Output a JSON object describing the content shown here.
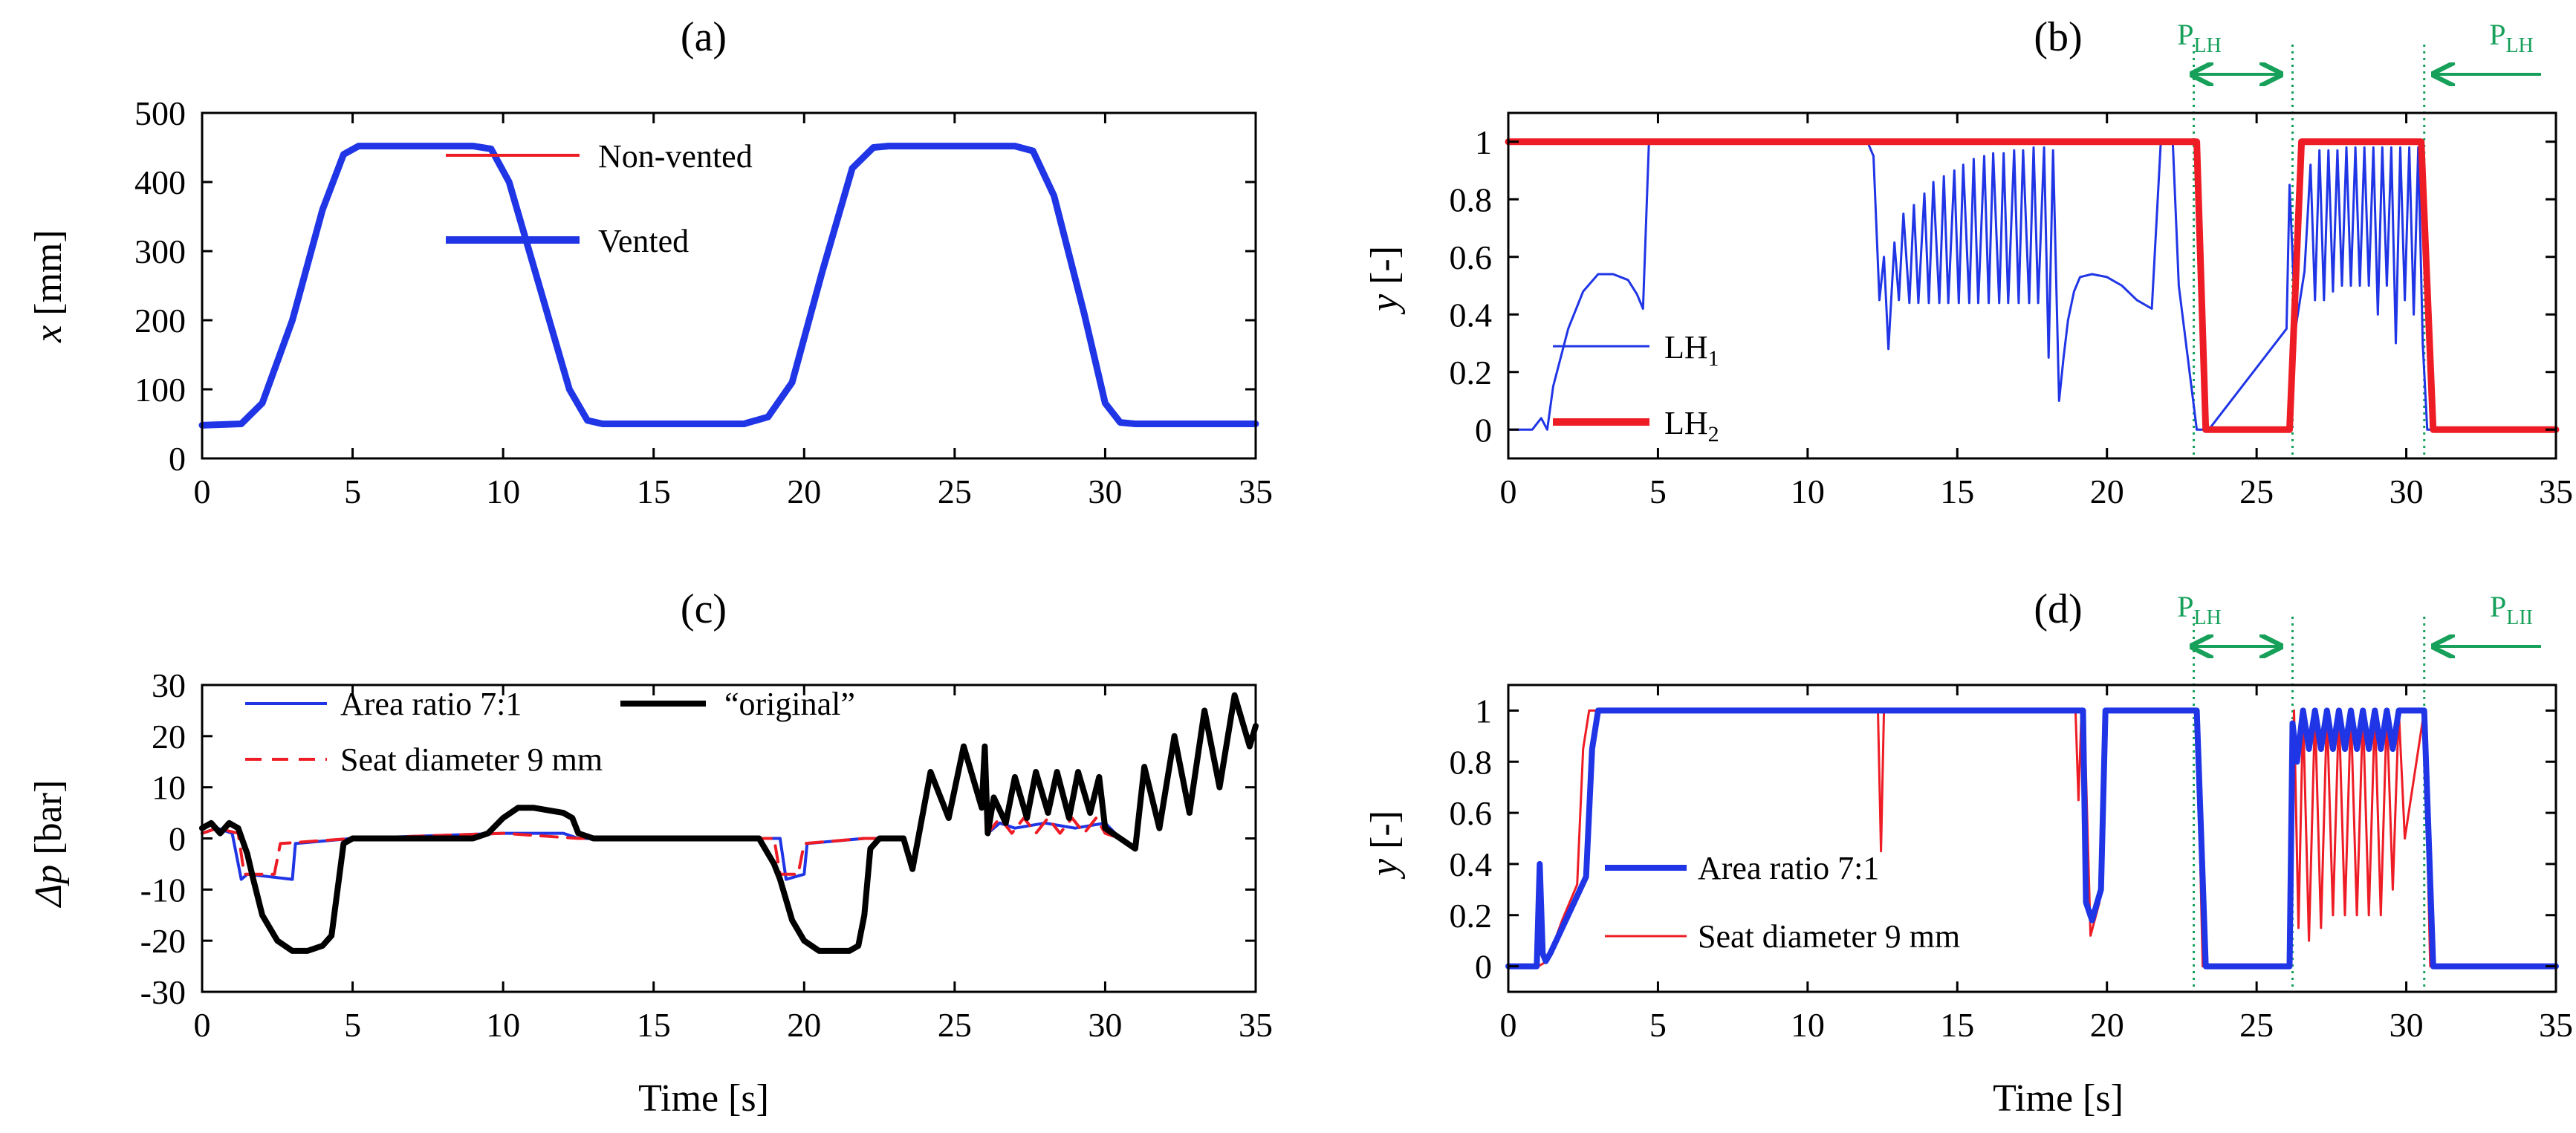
{
  "colors": {
    "red": "#ee1c25",
    "blue": "#1f35e6",
    "black": "#000000",
    "green": "#16a05a",
    "axis": "#000000"
  },
  "time_label": "Time [s]",
  "x_ticks": [
    "0",
    "5",
    "10",
    "15",
    "20",
    "25",
    "30",
    "35"
  ],
  "chart_data": [
    {
      "id": "a",
      "panel_label": "(a)",
      "type": "line",
      "ylabel_var": "x",
      "ylabel_unit": " [mm]",
      "xlabel": "",
      "xlim": [
        0,
        35
      ],
      "ylim": [
        0,
        500
      ],
      "y_ticks": [
        "0",
        "100",
        "200",
        "300",
        "400",
        "500"
      ],
      "legend": "top-center",
      "series": [
        {
          "name": "Non-vented",
          "color": "#ee1c25",
          "width": 4,
          "x": [
            0,
            1.3,
            2.0,
            3.0,
            4.0,
            4.7,
            5.2,
            6,
            9,
            9.6,
            10.2,
            11.2,
            12.2,
            12.8,
            13.3,
            15,
            18,
            18.8,
            19.6,
            20.6,
            21.6,
            22.3,
            22.8,
            25,
            27,
            27.6,
            28.3,
            29.3,
            30.0,
            30.5,
            31,
            35
          ],
          "y": [
            48,
            50,
            80,
            200,
            360,
            440,
            452,
            452,
            452,
            448,
            400,
            250,
            100,
            55,
            50,
            50,
            50,
            60,
            110,
            270,
            420,
            450,
            452,
            452,
            452,
            445,
            380,
            210,
            80,
            52,
            50,
            50
          ]
        },
        {
          "name": "Vented",
          "color": "#1f35e6",
          "width": 9,
          "x": [
            0,
            1.3,
            2.0,
            3.0,
            4.0,
            4.7,
            5.2,
            6,
            9,
            9.6,
            10.2,
            11.2,
            12.2,
            12.8,
            13.3,
            15,
            18,
            18.8,
            19.6,
            20.6,
            21.6,
            22.3,
            22.8,
            25,
            27,
            27.6,
            28.3,
            29.3,
            30.0,
            30.5,
            31,
            35
          ],
          "y": [
            48,
            50,
            80,
            200,
            360,
            440,
            452,
            452,
            452,
            448,
            400,
            250,
            100,
            55,
            50,
            50,
            50,
            60,
            110,
            270,
            420,
            450,
            452,
            452,
            452,
            445,
            380,
            210,
            80,
            52,
            50,
            50
          ]
        }
      ]
    },
    {
      "id": "b",
      "panel_label": "(b)",
      "type": "line",
      "ylabel_var": "y",
      "ylabel_unit": " [-]",
      "xlabel": "",
      "xlim": [
        0,
        35
      ],
      "ylim": [
        -0.1,
        1.1
      ],
      "y_ticks": [
        "0",
        "0.2",
        "0.4",
        "0.6",
        "0.8",
        "1"
      ],
      "legend": "center-left",
      "series": [
        {
          "name": "LH",
          "name_sub": "1",
          "color": "#1f35e6",
          "width": 3,
          "x": [
            0,
            0.8,
            1.1,
            1.3,
            1.5,
            2.0,
            2.5,
            3.0,
            3.5,
            4.0,
            4.3,
            4.5,
            4.7,
            4.9,
            12.0,
            12.2,
            12.4,
            12.55,
            12.7,
            12.9,
            13.05,
            13.2,
            13.4,
            13.55,
            13.7,
            13.9,
            14.05,
            14.2,
            14.4,
            14.55,
            14.7,
            14.9,
            15.05,
            15.2,
            15.4,
            15.55,
            15.7,
            15.9,
            16.05,
            16.2,
            16.4,
            16.55,
            16.7,
            16.9,
            17.05,
            17.2,
            17.4,
            17.55,
            17.7,
            17.9,
            18.05,
            18.2,
            18.4,
            18.55,
            18.7,
            18.9,
            19.1,
            19.5,
            20.0,
            20.5,
            21.0,
            21.5,
            21.8,
            22.0,
            22.2,
            22.4,
            23.0,
            23.15,
            23.4,
            26.0,
            26.1,
            26.3,
            26.6,
            26.8,
            26.95,
            27.1,
            27.25,
            27.4,
            27.55,
            27.7,
            27.85,
            28.0,
            28.15,
            28.3,
            28.45,
            28.6,
            28.75,
            28.9,
            29.05,
            29.2,
            29.35,
            29.5,
            29.65,
            29.8,
            29.95,
            30.1,
            30.25,
            30.4,
            30.55,
            30.7,
            35
          ],
          "y": [
            0,
            0,
            0.04,
            0.0,
            0.15,
            0.35,
            0.48,
            0.54,
            0.54,
            0.52,
            0.47,
            0.42,
            1.0,
            1.0,
            1.0,
            0.95,
            0.45,
            0.6,
            0.28,
            0.65,
            0.45,
            0.75,
            0.44,
            0.78,
            0.44,
            0.82,
            0.44,
            0.86,
            0.44,
            0.88,
            0.44,
            0.9,
            0.44,
            0.92,
            0.44,
            0.94,
            0.44,
            0.95,
            0.44,
            0.96,
            0.44,
            0.96,
            0.44,
            0.97,
            0.44,
            0.97,
            0.44,
            0.98,
            0.44,
            0.98,
            0.25,
            0.97,
            0.1,
            0.25,
            0.38,
            0.48,
            0.53,
            0.54,
            0.53,
            0.5,
            0.45,
            0.42,
            1.0,
            1.0,
            1.0,
            0.5,
            0.0,
            0.0,
            0.0,
            0.35,
            0.85,
            0.35,
            0.55,
            0.92,
            0.45,
            0.97,
            0.45,
            0.97,
            0.48,
            0.97,
            0.5,
            0.98,
            0.5,
            0.98,
            0.5,
            0.98,
            0.5,
            0.98,
            0.4,
            0.98,
            0.5,
            0.98,
            0.3,
            0.98,
            0.45,
            0.98,
            0.4,
            0.98,
            0.3,
            0.0,
            0.0
          ]
        },
        {
          "name": "LH",
          "name_sub": "2",
          "color": "#ee1c25",
          "width": 9,
          "x": [
            0,
            23.0,
            23.3,
            26.1,
            26.5,
            30.5,
            30.9,
            35
          ],
          "y": [
            1,
            1,
            0,
            0,
            1,
            1,
            0,
            0
          ]
        }
      ],
      "annotations": [
        {
          "label": "P",
          "sub": "LH"
        },
        {
          "label": "P",
          "sub": "LH"
        }
      ],
      "vlines_x": [
        22.9,
        26.2,
        30.6
      ]
    },
    {
      "id": "c",
      "panel_label": "(c)",
      "type": "line",
      "ylabel_var": "Δp",
      "ylabel_unit": " [bar]",
      "xlabel": "Time [s]",
      "xlim": [
        0,
        35
      ],
      "ylim": [
        -30,
        30
      ],
      "y_ticks": [
        "-30",
        "-20",
        "-10",
        "0",
        "10",
        "20",
        "30"
      ],
      "legend": "top",
      "series": [
        {
          "name": "Area ratio 7:1",
          "color": "#1f35e6",
          "width": 4,
          "x": [
            0,
            0.5,
            1.0,
            1.3,
            1.5,
            3.0,
            3.1,
            5,
            10,
            12,
            12.5,
            19.2,
            19.4,
            20.0,
            20.1,
            22,
            23.3,
            23.6,
            24.2,
            24.8,
            25.3,
            25.9,
            26.0,
            26.1,
            26.5,
            27,
            28,
            29,
            30,
            30.5,
            31.0,
            31.3,
            31.8,
            32.3,
            32.8,
            33.3,
            33.8,
            34.3,
            34.8,
            35
          ],
          "y": [
            1,
            2,
            1,
            -8,
            -7,
            -8,
            -1,
            0,
            1,
            1,
            0,
            0,
            -8,
            -7,
            -1,
            0,
            0,
            -6,
            13,
            4,
            18,
            6,
            18,
            1,
            3,
            2,
            3,
            2,
            3,
            0,
            -2,
            14,
            2,
            20,
            5,
            25,
            10,
            28,
            18,
            22
          ]
        },
        {
          "name": "Seat diameter 9 mm",
          "color": "#ee1c25",
          "width": 4,
          "dash": "22 14",
          "x": [
            0,
            0.5,
            1.2,
            1.4,
            2.4,
            2.6,
            5,
            10,
            12.5,
            19.0,
            19.2,
            19.8,
            20.0,
            22,
            23.3,
            23.6,
            24.2,
            24.8,
            25.3,
            25.9,
            26.0,
            26.1,
            26.5,
            26.9,
            27.3,
            27.7,
            28.1,
            28.5,
            28.9,
            29.3,
            29.7,
            30.0,
            30.5,
            31.0,
            31.3,
            31.8,
            32.3,
            32.8,
            33.3,
            33.8,
            34.3,
            34.8,
            35
          ],
          "y": [
            1,
            2,
            1,
            -7,
            -7,
            -1,
            0,
            1,
            0,
            0,
            -7,
            -7,
            -1,
            0,
            0,
            -6,
            13,
            4,
            18,
            6,
            18,
            1,
            4,
            1,
            4,
            1,
            4,
            1,
            4,
            1,
            4,
            1,
            0,
            -2,
            14,
            2,
            20,
            5,
            25,
            10,
            28,
            18,
            22
          ]
        },
        {
          "name": "“original”",
          "color": "#000000",
          "width": 8,
          "x": [
            0,
            0.3,
            0.6,
            0.9,
            1.2,
            1.5,
            1.7,
            2.0,
            2.5,
            3.0,
            3.5,
            4.0,
            4.3,
            4.5,
            4.7,
            5,
            9,
            9.5,
            10.0,
            10.5,
            11,
            12,
            12.3,
            12.5,
            13,
            18.5,
            19.0,
            19.2,
            19.6,
            20.0,
            20.5,
            21.0,
            21.5,
            21.8,
            22.0,
            22.2,
            22.5,
            23.3,
            23.6,
            24.2,
            24.8,
            25.3,
            25.9,
            26.0,
            26.1,
            26.3,
            26.7,
            27.0,
            27.4,
            27.7,
            28.1,
            28.4,
            28.8,
            29.1,
            29.5,
            29.8,
            30.0,
            30.5,
            31.0,
            31.3,
            31.8,
            32.3,
            32.8,
            33.3,
            33.8,
            34.3,
            34.8,
            35
          ],
          "y": [
            2,
            3,
            1,
            3,
            2,
            -3,
            -8,
            -15,
            -20,
            -22,
            -22,
            -21,
            -19,
            -10,
            -1,
            0,
            0,
            1,
            4,
            6,
            6,
            5,
            4,
            1,
            0,
            0,
            -5,
            -8,
            -16,
            -20,
            -22,
            -22,
            -22,
            -21,
            -15,
            -2,
            0,
            0,
            -6,
            13,
            4,
            18,
            6,
            18,
            1,
            8,
            3,
            12,
            4,
            13,
            5,
            13,
            4,
            13,
            5,
            12,
            2,
            0,
            -2,
            14,
            2,
            20,
            5,
            25,
            10,
            28,
            18,
            22
          ]
        }
      ]
    },
    {
      "id": "d",
      "panel_label": "(d)",
      "type": "line",
      "ylabel_var": "y",
      "ylabel_unit": " [-]",
      "xlabel": "Time [s]",
      "xlim": [
        0,
        35
      ],
      "ylim": [
        -0.1,
        1.1
      ],
      "y_ticks": [
        "0",
        "0.2",
        "0.4",
        "0.6",
        "0.8",
        "1"
      ],
      "legend": "bottom-left",
      "series": [
        {
          "name": "Seat diameter 9 mm",
          "color": "#ee1c25",
          "width": 3,
          "x": [
            0,
            1.0,
            1.3,
            1.8,
            2.3,
            2.5,
            2.7,
            12.35,
            12.45,
            12.55,
            18.95,
            19.05,
            19.15,
            19.25,
            19.45,
            19.75,
            19.9,
            20.1,
            23.0,
            23.2,
            26.1,
            26.25,
            26.4,
            26.55,
            26.75,
            26.95,
            27.15,
            27.35,
            27.55,
            27.75,
            27.95,
            28.15,
            28.35,
            28.55,
            28.75,
            28.95,
            29.15,
            29.35,
            29.55,
            29.75,
            29.95,
            30.6,
            30.8,
            35
          ],
          "y": [
            0,
            0,
            0.02,
            0.18,
            0.32,
            0.85,
            1.0,
            1.0,
            0.45,
            1.0,
            1.0,
            0.65,
            1.0,
            0.95,
            0.12,
            0.25,
            1.0,
            1.0,
            1.0,
            0,
            0,
            1.0,
            0.15,
            1.0,
            0.1,
            1.0,
            0.15,
            1.0,
            0.2,
            1.0,
            0.2,
            1.0,
            0.2,
            1.0,
            0.2,
            1.0,
            0.2,
            1.0,
            0.3,
            1.0,
            0.5,
            1.0,
            0,
            0
          ]
        },
        {
          "name": "Area ratio 7:1",
          "color": "#1f35e6",
          "width": 8,
          "x": [
            0,
            0.95,
            1.05,
            1.15,
            1.25,
            1.4,
            2.0,
            2.6,
            2.8,
            3.0,
            5,
            19.2,
            19.3,
            19.5,
            19.8,
            19.95,
            20.2,
            23.0,
            23.3,
            26.1,
            26.2,
            26.35,
            26.55,
            26.75,
            26.95,
            27.15,
            27.35,
            27.55,
            27.75,
            27.95,
            28.15,
            28.35,
            28.55,
            28.75,
            28.95,
            29.15,
            29.35,
            29.55,
            29.75,
            29.95,
            30.6,
            30.9,
            35
          ],
          "y": [
            0,
            0,
            0.4,
            0.05,
            0.02,
            0.05,
            0.2,
            0.35,
            0.85,
            1.0,
            1.0,
            1.0,
            0.25,
            0.18,
            0.3,
            1.0,
            1.0,
            1.0,
            0,
            0,
            0.95,
            0.8,
            1.0,
            0.85,
            1.0,
            0.85,
            1.0,
            0.85,
            1.0,
            0.85,
            1.0,
            0.85,
            1.0,
            0.85,
            1.0,
            0.85,
            1.0,
            0.85,
            1.0,
            1.0,
            1.0,
            0,
            0
          ]
        }
      ],
      "annotations": [
        {
          "label": "P",
          "sub": "LH"
        },
        {
          "label": "P",
          "sub": "LII"
        }
      ],
      "vlines_x": [
        22.9,
        26.2,
        30.6
      ]
    }
  ]
}
